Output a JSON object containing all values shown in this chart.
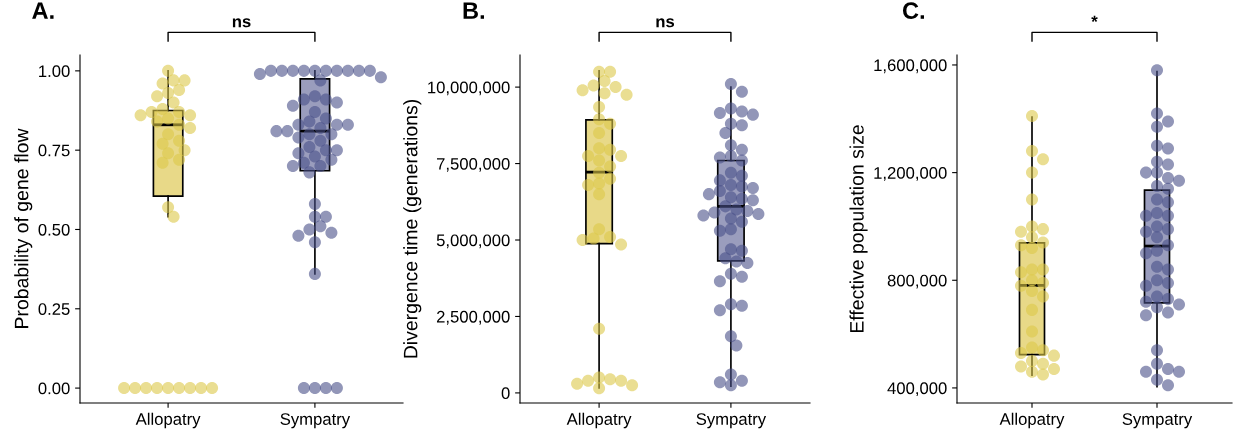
{
  "chart_data": [
    {
      "type": "box",
      "title": "A.",
      "ylabel": "Probability of gene flow",
      "categories": [
        "Allopatry",
        "Sympatry"
      ],
      "colors": [
        "#e8d988",
        "#9a9dbd"
      ],
      "boxes": [
        {
          "low": 0.54,
          "q1": 0.605,
          "median": 0.83,
          "q3": 0.875,
          "high": 1.0
        },
        {
          "low": 0.36,
          "q1": 0.685,
          "median": 0.81,
          "q3": 0.975,
          "high": 1.0
        }
      ],
      "ylim": [
        -0.047,
        1.05
      ],
      "yticks": [
        {
          "value": 0,
          "label": "0.00"
        },
        {
          "value": 0.25,
          "label": "0.25"
        },
        {
          "value": 0.5,
          "label": "0.50"
        },
        {
          "value": 0.75,
          "label": "0.75"
        },
        {
          "value": 1.0,
          "label": "1.00"
        }
      ],
      "annotations": [
        "ns"
      ],
      "grid": false,
      "legend": false,
      "series": [
        {
          "type": "scatter",
          "color": "#dcc84a",
          "x": [
            "Allopatry",
            "Allopatry",
            "Allopatry",
            "Allopatry",
            "Allopatry",
            "Allopatry",
            "Allopatry",
            "Allopatry",
            "Allopatry",
            "Allopatry",
            "Allopatry",
            "Allopatry",
            "Allopatry",
            "Allopatry",
            "Allopatry",
            "Allopatry",
            "Allopatry",
            "Allopatry",
            "Allopatry",
            "Allopatry",
            "Allopatry",
            "Allopatry",
            "Allopatry",
            "Allopatry",
            "Allopatry",
            "Allopatry",
            "Allopatry",
            "Allopatry",
            "Allopatry",
            "Allopatry",
            "Allopatry",
            "Allopatry",
            "Allopatry",
            "Allopatry",
            "Allopatry"
          ],
          "values": [
            1.0,
            0.97,
            0.96,
            0.97,
            0.94,
            0.93,
            0.92,
            0.9,
            0.88,
            0.87,
            0.87,
            0.86,
            0.86,
            0.85,
            0.84,
            0.83,
            0.82,
            0.8,
            0.78,
            0.77,
            0.74,
            0.75,
            0.72,
            0.71,
            0.57,
            0.54,
            0,
            0,
            0,
            0,
            0,
            0,
            0,
            0,
            0
          ]
        },
        {
          "type": "scatter",
          "color": "#4a5089",
          "x": [
            "Sympatry",
            "Sympatry",
            "Sympatry",
            "Sympatry",
            "Sympatry",
            "Sympatry",
            "Sympatry",
            "Sympatry",
            "Sympatry",
            "Sympatry",
            "Sympatry",
            "Sympatry",
            "Sympatry",
            "Sympatry",
            "Sympatry",
            "Sympatry",
            "Sympatry",
            "Sympatry",
            "Sympatry",
            "Sympatry",
            "Sympatry",
            "Sympatry",
            "Sympatry",
            "Sympatry",
            "Sympatry",
            "Sympatry",
            "Sympatry",
            "Sympatry",
            "Sympatry",
            "Sympatry",
            "Sympatry",
            "Sympatry",
            "Sympatry",
            "Sympatry",
            "Sympatry",
            "Sympatry",
            "Sympatry",
            "Sympatry",
            "Sympatry",
            "Sympatry",
            "Sympatry",
            "Sympatry",
            "Sympatry",
            "Sympatry",
            "Sympatry",
            "Sympatry",
            "Sympatry",
            "Sympatry",
            "Sympatry",
            "Sympatry",
            "Sympatry",
            "Sympatry",
            "Sympatry",
            "Sympatry"
          ],
          "values": [
            1.0,
            1.0,
            1.0,
            1.0,
            1.0,
            1.0,
            1.0,
            1.0,
            1.0,
            1.0,
            0.99,
            0.98,
            0.97,
            0.92,
            0.91,
            0.91,
            0.9,
            0.89,
            0.87,
            0.85,
            0.84,
            0.83,
            0.83,
            0.82,
            0.81,
            0.8,
            0.8,
            0.79,
            0.78,
            0.76,
            0.75,
            0.74,
            0.73,
            0.72,
            0.71,
            0.7,
            0.68,
            0.58,
            0.54,
            0.54,
            0.51,
            0.5,
            0.49,
            0.48,
            0.46,
            0.36,
            0,
            0,
            0,
            0,
            0.83,
            0.81,
            0.75,
            0.7
          ]
        }
      ]
    },
    {
      "type": "box",
      "title": "B.",
      "ylabel": "Divergence time (generations)",
      "categories": [
        "Allopatry",
        "Sympatry"
      ],
      "colors": [
        "#e8d988",
        "#9a9dbd"
      ],
      "boxes": [
        {
          "low": 160000,
          "q1": 4880000,
          "median": 7220000,
          "q3": 8930000,
          "high": 10530000
        },
        {
          "low": 220000,
          "q1": 4320000,
          "median": 6100000,
          "q3": 7600000,
          "high": 10000000
        }
      ],
      "ylim": [
        -330000,
        11050000
      ],
      "yticks": [
        {
          "value": 0,
          "label": "0"
        },
        {
          "value": 2500000,
          "label": "2,500,000"
        },
        {
          "value": 5000000,
          "label": "5,000,000"
        },
        {
          "value": 7500000,
          "label": "7,500,000"
        },
        {
          "value": 10000000,
          "label": "10,000,000"
        }
      ],
      "annotations": [
        "ns"
      ],
      "grid": false,
      "legend": false,
      "series": [
        {
          "type": "scatter",
          "color": "#dcc84a",
          "x": [
            "Allopatry",
            "Allopatry",
            "Allopatry",
            "Allopatry",
            "Allopatry",
            "Allopatry",
            "Allopatry",
            "Allopatry",
            "Allopatry",
            "Allopatry",
            "Allopatry",
            "Allopatry",
            "Allopatry",
            "Allopatry",
            "Allopatry",
            "Allopatry",
            "Allopatry",
            "Allopatry",
            "Allopatry",
            "Allopatry",
            "Allopatry",
            "Allopatry",
            "Allopatry",
            "Allopatry",
            "Allopatry",
            "Allopatry",
            "Allopatry",
            "Allopatry",
            "Allopatry",
            "Allopatry",
            "Allopatry",
            "Allopatry",
            "Allopatry",
            "Allopatry",
            "Allopatry",
            "Allopatry"
          ],
          "values": [
            10500000,
            10500000,
            10200000,
            10050000,
            10000000,
            9900000,
            9800000,
            9750000,
            9350000,
            8950000,
            8800000,
            8500000,
            8000000,
            7950000,
            7750000,
            7750000,
            7600000,
            7400000,
            7200000,
            7000000,
            6850000,
            6800000,
            6500000,
            5350000,
            5100000,
            5050000,
            5000000,
            4850000,
            2100000,
            500000,
            450000,
            400000,
            400000,
            300000,
            250000,
            150000
          ]
        },
        {
          "type": "scatter",
          "color": "#4a5089",
          "x": [
            "Sympatry",
            "Sympatry",
            "Sympatry",
            "Sympatry",
            "Sympatry",
            "Sympatry",
            "Sympatry",
            "Sympatry",
            "Sympatry",
            "Sympatry",
            "Sympatry",
            "Sympatry",
            "Sympatry",
            "Sympatry",
            "Sympatry",
            "Sympatry",
            "Sympatry",
            "Sympatry",
            "Sympatry",
            "Sympatry",
            "Sympatry",
            "Sympatry",
            "Sympatry",
            "Sympatry",
            "Sympatry",
            "Sympatry",
            "Sympatry",
            "Sympatry",
            "Sympatry",
            "Sympatry",
            "Sympatry",
            "Sympatry",
            "Sympatry",
            "Sympatry",
            "Sympatry",
            "Sympatry",
            "Sympatry",
            "Sympatry",
            "Sympatry",
            "Sympatry",
            "Sympatry",
            "Sympatry",
            "Sympatry",
            "Sympatry",
            "Sympatry",
            "Sympatry",
            "Sympatry",
            "Sympatry",
            "Sympatry",
            "Sympatry",
            "Sympatry",
            "Sympatry"
          ],
          "values": [
            10100000,
            9850000,
            9300000,
            9200000,
            9150000,
            9100000,
            8800000,
            8750000,
            8500000,
            8100000,
            7950000,
            7750000,
            7700000,
            7600000,
            7200000,
            7100000,
            6950000,
            6800000,
            6750000,
            6700000,
            6600000,
            6500000,
            6400000,
            6350000,
            6300000,
            6100000,
            6000000,
            5950000,
            5900000,
            5850000,
            5800000,
            5700000,
            5600000,
            5350000,
            5300000,
            4700000,
            4650000,
            4400000,
            4300000,
            4250000,
            3900000,
            3800000,
            3650000,
            2900000,
            2850000,
            2700000,
            1850000,
            1550000,
            600000,
            400000,
            350000,
            250000
          ]
        }
      ]
    },
    {
      "type": "box",
      "title": "C.",
      "ylabel": "Effective population size",
      "categories": [
        "Allopatry",
        "Sympatry"
      ],
      "colors": [
        "#e8d988",
        "#9a9dbd"
      ],
      "boxes": [
        {
          "low": 447000,
          "q1": 524000,
          "median": 781000,
          "q3": 939000,
          "high": 1406000
        },
        {
          "low": 405000,
          "q1": 716000,
          "median": 927000,
          "q3": 1135000,
          "high": 1575000
        }
      ],
      "ylim": [
        344000,
        1637000
      ],
      "yticks": [
        {
          "value": 400000,
          "label": "400,000"
        },
        {
          "value": 800000,
          "label": "800,000"
        },
        {
          "value": 1200000,
          "label": "1,200,000"
        },
        {
          "value": 1600000,
          "label": "1,600,000"
        }
      ],
      "annotations": [
        "*"
      ],
      "grid": false,
      "legend": false,
      "series": [
        {
          "type": "scatter",
          "color": "#dcc84a",
          "x": [
            "Allopatry",
            "Allopatry",
            "Allopatry",
            "Allopatry",
            "Allopatry",
            "Allopatry",
            "Allopatry",
            "Allopatry",
            "Allopatry",
            "Allopatry",
            "Allopatry",
            "Allopatry",
            "Allopatry",
            "Allopatry",
            "Allopatry",
            "Allopatry",
            "Allopatry",
            "Allopatry",
            "Allopatry",
            "Allopatry",
            "Allopatry",
            "Allopatry",
            "Allopatry",
            "Allopatry",
            "Allopatry",
            "Allopatry",
            "Allopatry",
            "Allopatry",
            "Allopatry",
            "Allopatry",
            "Allopatry",
            "Allopatry"
          ],
          "values": [
            1410000,
            1280000,
            1250000,
            1200000,
            1100000,
            1000000,
            990000,
            980000,
            960000,
            940000,
            930000,
            920000,
            840000,
            840000,
            830000,
            800000,
            790000,
            780000,
            760000,
            740000,
            690000,
            610000,
            550000,
            540000,
            530000,
            520000,
            500000,
            490000,
            480000,
            470000,
            460000,
            450000
          ]
        },
        {
          "type": "scatter",
          "color": "#4a5089",
          "x": [
            "Sympatry",
            "Sympatry",
            "Sympatry",
            "Sympatry",
            "Sympatry",
            "Sympatry",
            "Sympatry",
            "Sympatry",
            "Sympatry",
            "Sympatry",
            "Sympatry",
            "Sympatry",
            "Sympatry",
            "Sympatry",
            "Sympatry",
            "Sympatry",
            "Sympatry",
            "Sympatry",
            "Sympatry",
            "Sympatry",
            "Sympatry",
            "Sympatry",
            "Sympatry",
            "Sympatry",
            "Sympatry",
            "Sympatry",
            "Sympatry",
            "Sympatry",
            "Sympatry",
            "Sympatry",
            "Sympatry",
            "Sympatry",
            "Sympatry",
            "Sympatry",
            "Sympatry",
            "Sympatry",
            "Sympatry",
            "Sympatry",
            "Sympatry",
            "Sympatry",
            "Sympatry",
            "Sympatry",
            "Sympatry",
            "Sympatry",
            "Sympatry"
          ],
          "values": [
            1580000,
            1420000,
            1390000,
            1370000,
            1300000,
            1290000,
            1240000,
            1230000,
            1200000,
            1200000,
            1180000,
            1170000,
            1150000,
            1140000,
            1100000,
            1090000,
            1050000,
            1040000,
            1040000,
            1000000,
            990000,
            980000,
            960000,
            930000,
            910000,
            900000,
            850000,
            840000,
            800000,
            790000,
            780000,
            740000,
            730000,
            720000,
            710000,
            700000,
            680000,
            670000,
            540000,
            490000,
            470000,
            460000,
            460000,
            430000,
            410000
          ]
        }
      ]
    }
  ]
}
